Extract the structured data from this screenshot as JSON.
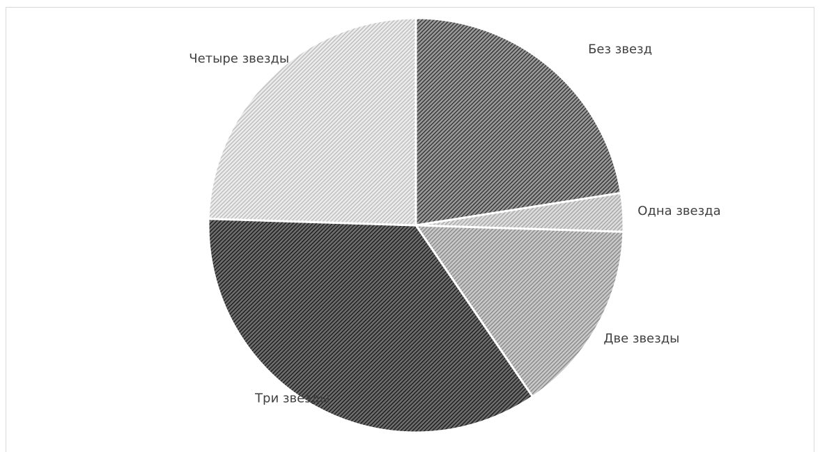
{
  "chart_data": {
    "type": "pie",
    "categories": [
      "Без звезд",
      "Одна звезда",
      "Две звезды",
      "Три звезды",
      "Четыре звезды"
    ],
    "values": [
      22.5,
      3.0,
      15.0,
      35.0,
      24.5
    ],
    "start_angle_deg": 0,
    "direction": "clockwise",
    "legend": "none",
    "slice_fills": [
      "#9a9a9a",
      "#dddddd",
      "#c9c9c9",
      "#6e6e6e",
      "#ececec"
    ],
    "slice_hatch_ink": [
      "#3a3a3a",
      "#a8a8a8",
      "#8c8c8c",
      "#202020",
      "#bfbfbf"
    ]
  }
}
